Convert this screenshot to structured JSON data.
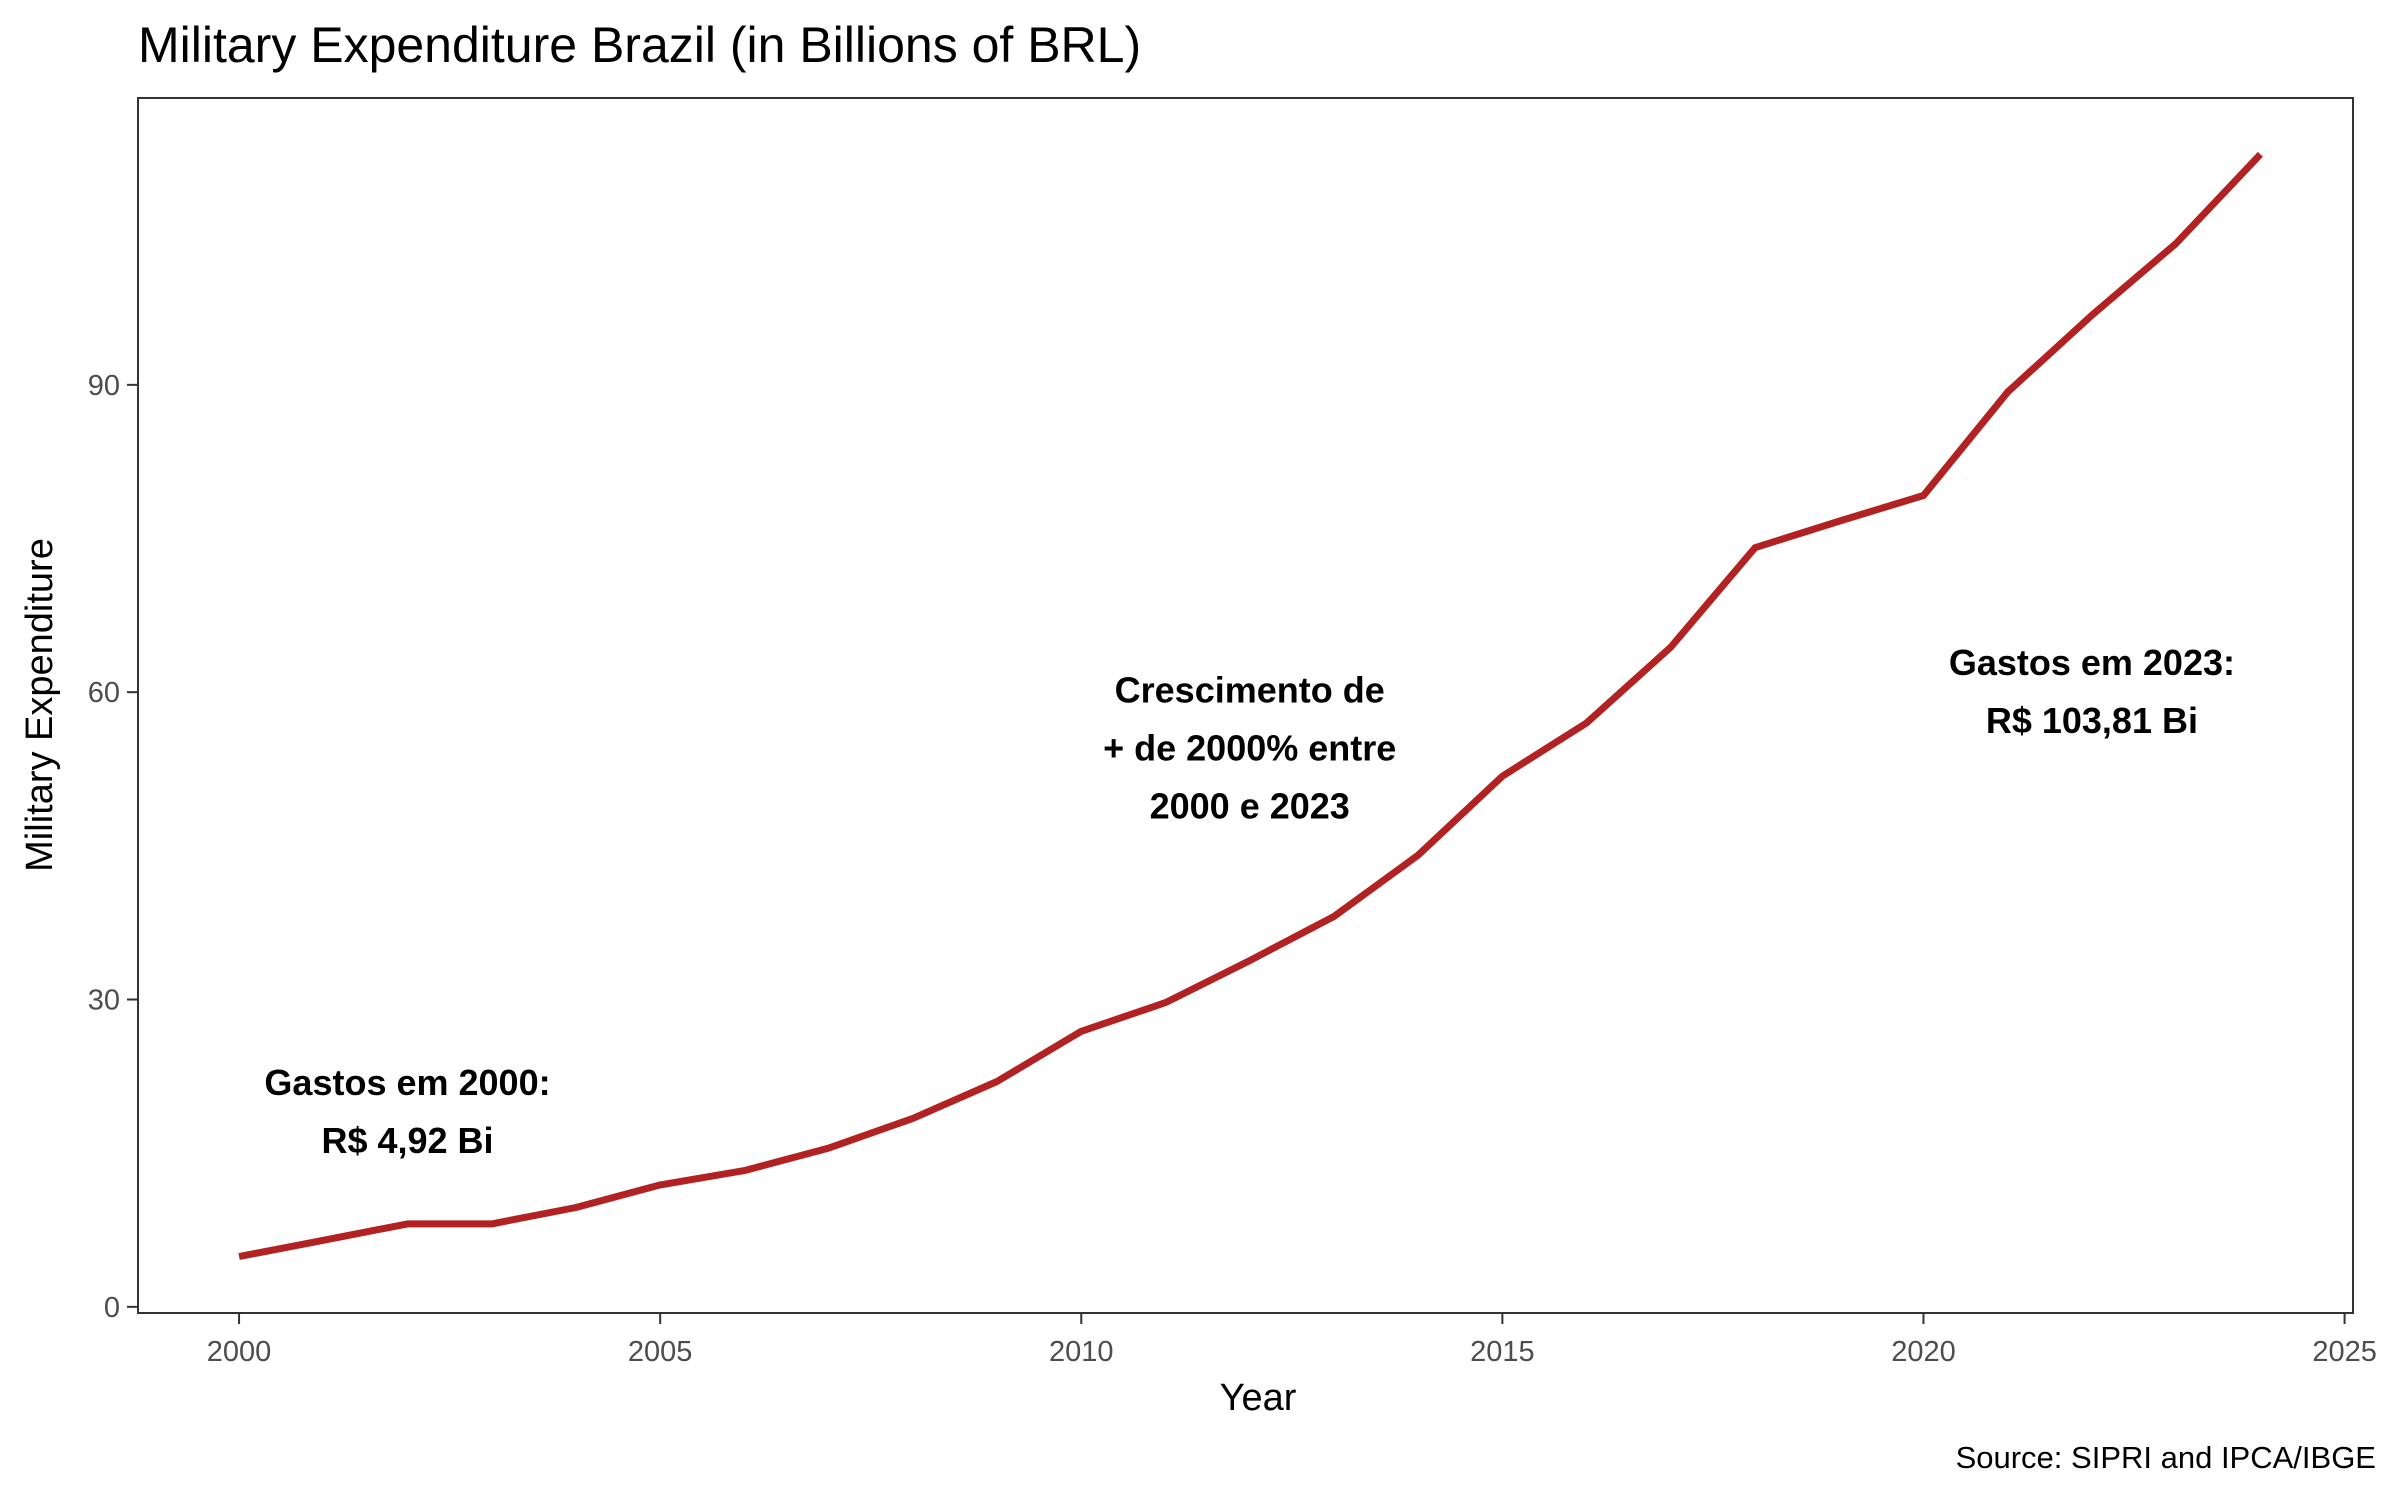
{
  "chart_data": {
    "type": "line",
    "title": "Military Expenditure Brazil (in Billions of BRL)",
    "xlabel": "Year",
    "ylabel": "Military Expenditure",
    "caption": "Source: SIPRI and IPCA/IBGE",
    "xlim": [
      1998.8,
      2025.1
    ],
    "ylim": [
      -0.6,
      118
    ],
    "x_ticks": [
      2000,
      2005,
      2010,
      2015,
      2020,
      2025
    ],
    "y_ticks": [
      0,
      30,
      60,
      90
    ],
    "grid": false,
    "legend": "none",
    "line_color": "#b22222",
    "series": [
      {
        "x": [
          2000,
          2001,
          2002,
          2003,
          2004,
          2005,
          2006,
          2007,
          2008,
          2009,
          2010,
          2011,
          2012,
          2013,
          2014,
          2015,
          2016,
          2017,
          2018,
          2019,
          2020,
          2021,
          2022,
          2023,
          2024
        ],
        "y": [
          4.92,
          6.5,
          8.1,
          8.1,
          9.7,
          11.9,
          13.3,
          15.5,
          18.4,
          22.0,
          26.9,
          29.7,
          33.8,
          38.1,
          44.1,
          51.8,
          57.0,
          64.4,
          74.1,
          76.7,
          79.2,
          89.3,
          96.8,
          103.81,
          112.5
        ]
      }
    ],
    "annotations": [
      {
        "lines": [
          "Gastos em 2000:",
          "R$ 4,92 Bi"
        ],
        "x": 2002,
        "y": 19
      },
      {
        "lines": [
          "Crescimento de",
          "+ de 2000% entre",
          "2000 e 2023"
        ],
        "x": 2012,
        "y": 54.5
      },
      {
        "lines": [
          "Gastos em 2023:",
          "R$ 103,81 Bi"
        ],
        "x": 2022,
        "y": 60
      }
    ]
  }
}
